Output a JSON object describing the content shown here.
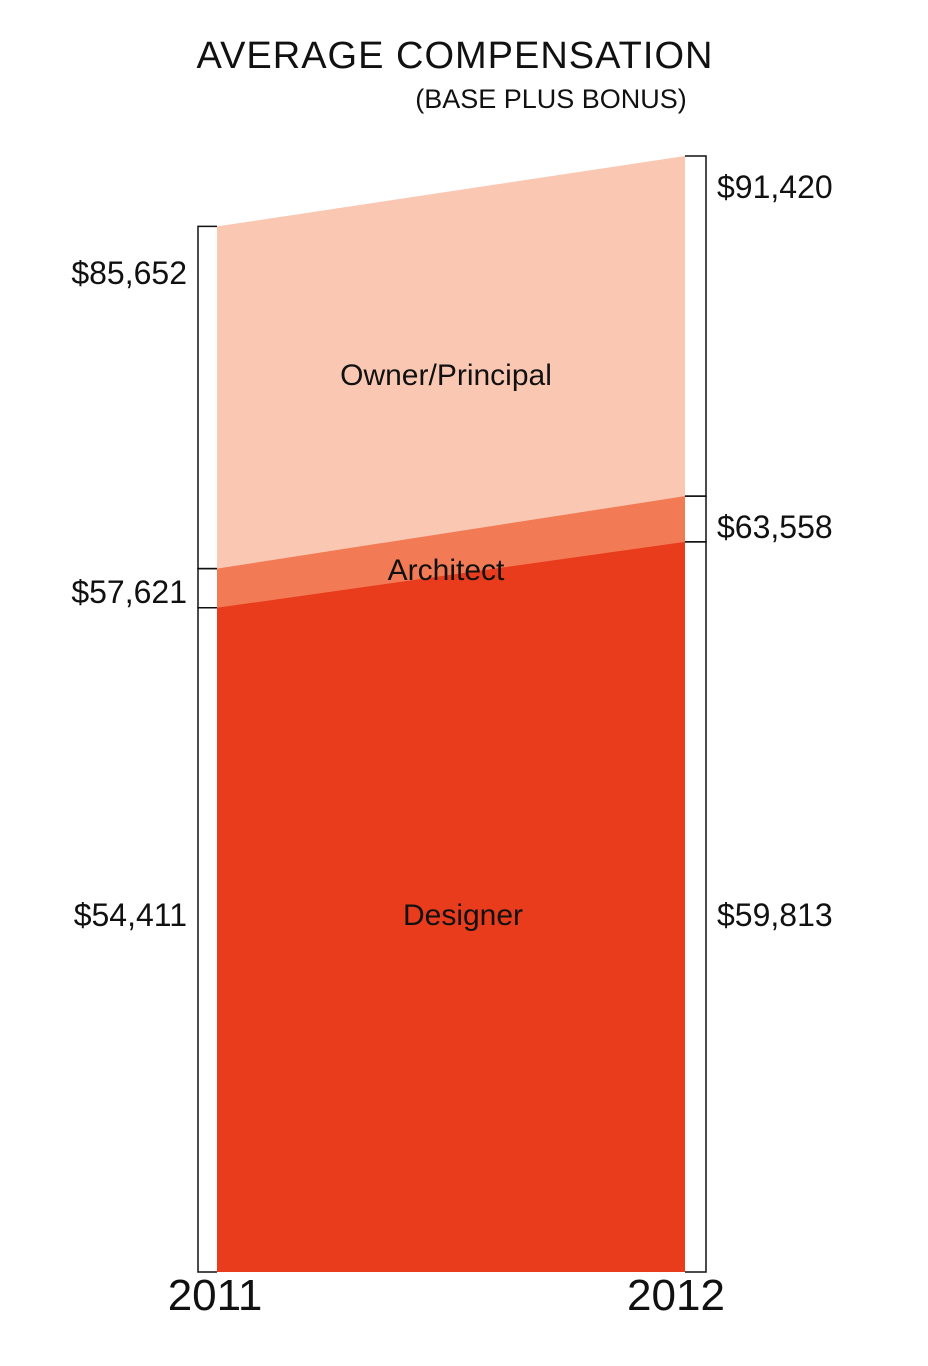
{
  "chart_data": {
    "type": "area",
    "title": "AVERAGE COMPENSATION",
    "subtitle": "(BASE PLUS BONUS)",
    "categories": [
      "2011",
      "2012"
    ],
    "series": [
      {
        "name": "Designer",
        "values": [
          54411,
          59813
        ],
        "color": "#e83c1c",
        "labels": [
          "$54,411",
          "$59,813"
        ]
      },
      {
        "name": "Architect",
        "values": [
          57621,
          63558
        ],
        "color": "#f27a55",
        "labels": [
          "$57,621",
          "$63,558"
        ]
      },
      {
        "name": "Owner/Principal",
        "values": [
          85652,
          91420
        ],
        "color": "#fac8b2",
        "labels": [
          "$85,652",
          "$91,420"
        ]
      }
    ],
    "ylim": [
      0,
      91420
    ],
    "grid": false,
    "legend": "inline"
  }
}
